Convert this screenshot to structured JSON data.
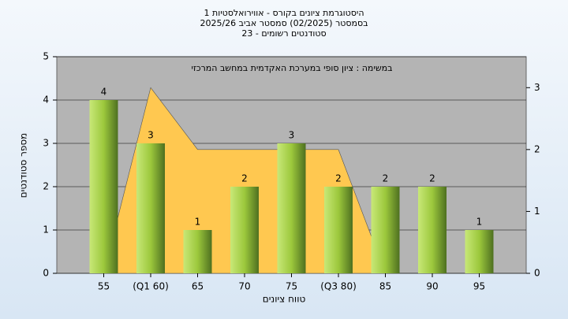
{
  "chart_data": {
    "type": "bar",
    "title": [
      "היסטוגרמת ציונים בקורס - אווירואלסטיות 1",
      "בסמסטר  (02/2025)  סמסטר אביב 2025/26",
      "סטודנטים רשומים - 23"
    ],
    "annotation": "במשימה : ציון סופי במערכת האקדמית במחשב המרכזי",
    "x_label": "טווח ציונים",
    "y_label": "מספר סטודנטים",
    "categories": [
      "55",
      "(Q1 60)",
      "65",
      "70",
      "75",
      "(Q3 80)",
      "85",
      "90",
      "95"
    ],
    "series": [
      {
        "type": "bar",
        "color": "#9cc83c",
        "values": [
          4,
          3,
          1,
          2,
          3,
          2,
          2,
          2,
          1
        ]
      },
      {
        "type": "area",
        "axis": "y2",
        "color": "#ffc850",
        "values": [
          0,
          3,
          2,
          2,
          2,
          2,
          0,
          null,
          null
        ]
      }
    ],
    "ylim": [
      0,
      5
    ],
    "yticks": [
      0,
      1,
      2,
      3,
      4,
      5
    ],
    "y2lim": [
      0,
      3.5
    ],
    "y2ticks": [
      0,
      1,
      2,
      3
    ],
    "grid": true
  }
}
